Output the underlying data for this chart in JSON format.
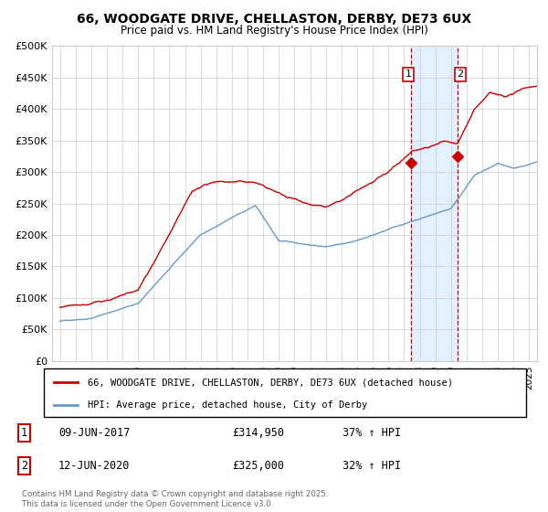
{
  "title": "66, WOODGATE DRIVE, CHELLASTON, DERBY, DE73 6UX",
  "subtitle": "Price paid vs. HM Land Registry's House Price Index (HPI)",
  "legend_line1": "66, WOODGATE DRIVE, CHELLASTON, DERBY, DE73 6UX (detached house)",
  "legend_line2": "HPI: Average price, detached house, City of Derby",
  "footer": "Contains HM Land Registry data © Crown copyright and database right 2025.\nThis data is licensed under the Open Government Licence v3.0.",
  "sale1_date": "09-JUN-2017",
  "sale1_price": "£314,950",
  "sale1_hpi": "37% ↑ HPI",
  "sale1_year": 2017.44,
  "sale1_value": 314950,
  "sale2_date": "12-JUN-2020",
  "sale2_price": "£325,000",
  "sale2_hpi": "32% ↑ HPI",
  "sale2_year": 2020.44,
  "sale2_value": 325000,
  "red_color": "#cc0000",
  "blue_color": "#6699cc",
  "shade_color": "#ddeeff",
  "dashed_color": "#cc0000",
  "background_color": "#ffffff",
  "grid_color": "#cccccc",
  "ylim": [
    0,
    500000
  ],
  "yticks": [
    0,
    50000,
    100000,
    150000,
    200000,
    250000,
    300000,
    350000,
    400000,
    450000,
    500000
  ],
  "start_year": 1995,
  "end_year": 2025.5
}
